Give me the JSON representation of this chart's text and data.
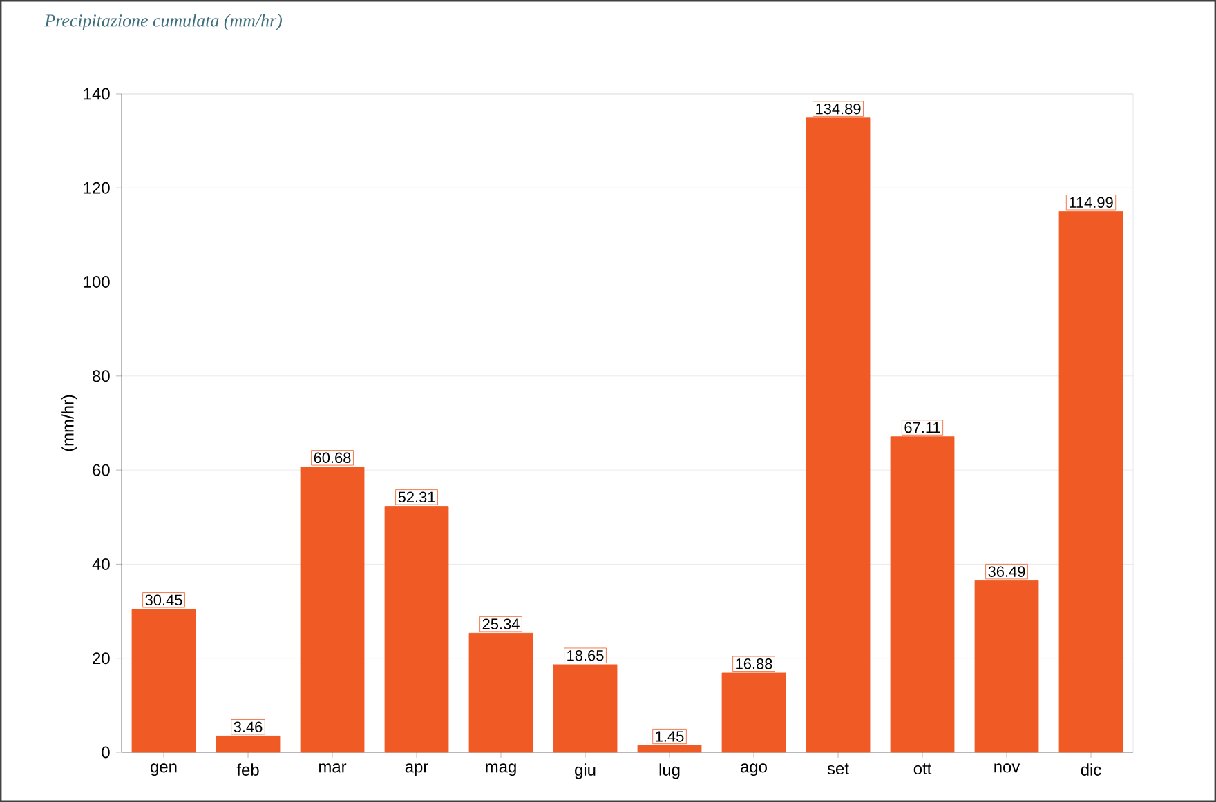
{
  "chart_data": {
    "type": "bar",
    "title": "Precipitazione cumulata (mm/hr)",
    "ylabel": "(mm/hr)",
    "categories": [
      "gen",
      "feb",
      "mar",
      "apr",
      "mag",
      "giu",
      "lug",
      "ago",
      "set",
      "ott",
      "nov",
      "dic"
    ],
    "values": [
      30.45,
      3.46,
      60.68,
      52.31,
      25.34,
      18.65,
      1.45,
      16.88,
      134.89,
      67.11,
      36.49,
      114.99
    ],
    "color": "#f05a24",
    "ylim": [
      0,
      140
    ],
    "yticks": [
      0,
      20,
      40,
      60,
      80,
      100,
      120,
      140
    ],
    "grid": "y",
    "data_labels": true
  }
}
